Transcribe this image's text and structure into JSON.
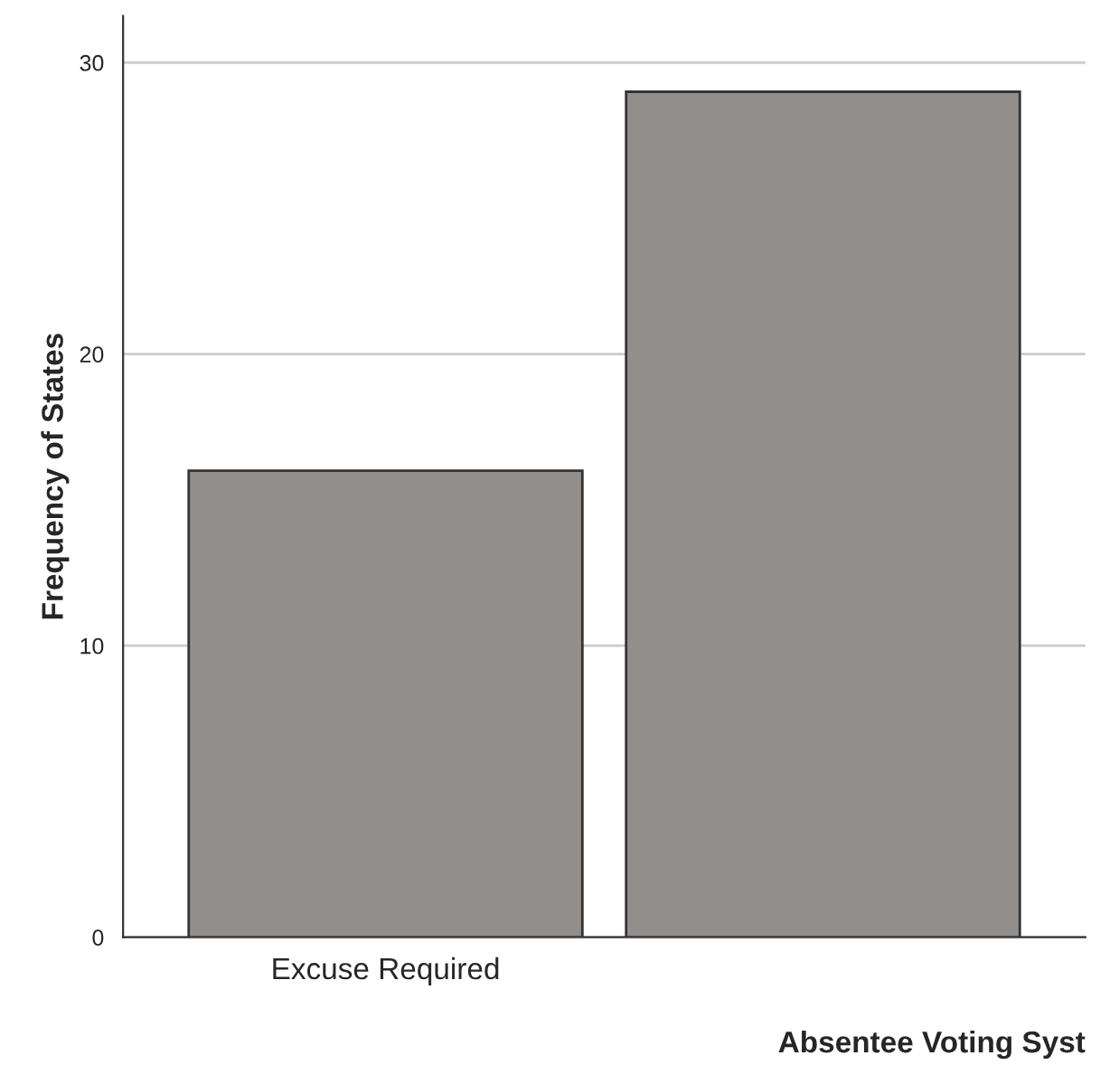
{
  "chart_data": {
    "type": "bar",
    "xlabel": "Absentee Voting Syst",
    "ylabel": "Frequency of States",
    "categories": [
      "Excuse Required",
      null
    ],
    "values": [
      16,
      29
    ],
    "color": "#928e8c",
    "ylim": [
      0,
      31.6
    ],
    "yticks": [
      0,
      10,
      20,
      30
    ],
    "grid": "y"
  }
}
